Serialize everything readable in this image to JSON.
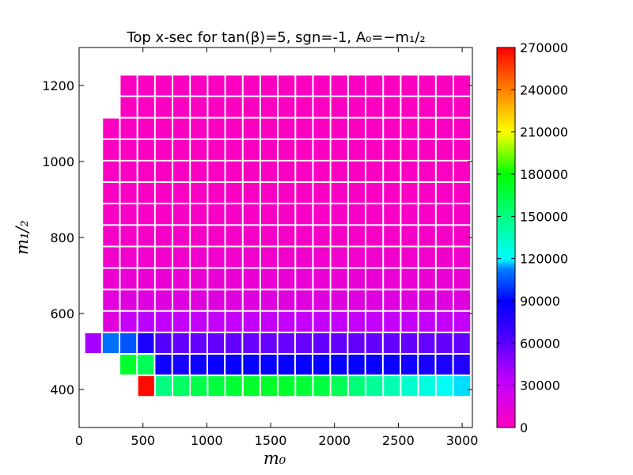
{
  "chart_data": {
    "type": "heatmap",
    "title": "Top x-sec for tan(β)=5, sgn=-1, A₀=−m₁/₂",
    "xlabel": "m₀",
    "ylabel": "m₁/₂",
    "xlim": [
      0,
      3080
    ],
    "ylim": [
      300,
      1300
    ],
    "xticks": [
      0,
      500,
      1000,
      1500,
      2000,
      2500,
      3000
    ],
    "yticks": [
      400,
      600,
      800,
      1000,
      1200
    ],
    "colorbar": {
      "min": 0,
      "max": 270000,
      "ticks": [
        0,
        30000,
        60000,
        90000,
        120000,
        150000,
        180000,
        210000,
        240000,
        270000
      ],
      "colormap": "gist_rainbow_r"
    },
    "cell_size": {
      "dx": 137.5,
      "dy": 56.5
    },
    "rows": [
      {
        "y": 1200,
        "x_start": 387.5,
        "values": [
          1500,
          1500,
          1500,
          1500,
          1500,
          1500,
          1500,
          1500,
          1500,
          1500,
          1500,
          1500,
          1500,
          1500,
          1500,
          1500,
          1500,
          1500,
          1500,
          1500
        ]
      },
      {
        "y": 1143.5,
        "x_start": 387.5,
        "values": [
          1500,
          1500,
          1500,
          1500,
          1500,
          1500,
          1500,
          1500,
          1500,
          1500,
          1500,
          1500,
          1500,
          1500,
          1500,
          1500,
          1500,
          1500,
          1500,
          1500
        ]
      },
      {
        "y": 1087,
        "x_start": 250,
        "values": [
          1500,
          1500,
          1500,
          1500,
          1500,
          1500,
          1500,
          1500,
          1500,
          1500,
          1500,
          1500,
          1500,
          1500,
          1500,
          1500,
          1500,
          1500,
          1500,
          1500,
          1500
        ]
      },
      {
        "y": 1030.5,
        "x_start": 250,
        "values": [
          1500,
          1500,
          1500,
          1500,
          1500,
          1500,
          1500,
          1500,
          1500,
          1500,
          1500,
          1500,
          1500,
          1500,
          1500,
          1500,
          1500,
          1500,
          1500,
          1500,
          1500
        ]
      },
      {
        "y": 974,
        "x_start": 250,
        "values": [
          2000,
          2000,
          2000,
          2000,
          2000,
          2000,
          2000,
          2000,
          2000,
          2000,
          2000,
          2000,
          2000,
          2000,
          2000,
          2000,
          2000,
          2000,
          2000,
          2000,
          2000
        ]
      },
      {
        "y": 917.5,
        "x_start": 250,
        "values": [
          2500,
          2500,
          2500,
          2500,
          2500,
          2500,
          2500,
          2500,
          2500,
          2500,
          2500,
          2500,
          2500,
          2500,
          2500,
          2500,
          2500,
          2500,
          2500,
          2500,
          2500
        ]
      },
      {
        "y": 861,
        "x_start": 250,
        "values": [
          3500,
          3500,
          3500,
          3500,
          3500,
          3500,
          3500,
          3500,
          3500,
          3500,
          3500,
          3500,
          3500,
          3500,
          3500,
          3500,
          3500,
          3500,
          3500,
          3500,
          3500
        ]
      },
      {
        "y": 804.5,
        "x_start": 250,
        "values": [
          5000,
          5000,
          5000,
          5000,
          5000,
          5000,
          5000,
          5000,
          5000,
          5000,
          5000,
          5000,
          5000,
          5000,
          5000,
          5000,
          5000,
          5000,
          5000,
          5000,
          5000
        ]
      },
      {
        "y": 748,
        "x_start": 250,
        "values": [
          7000,
          7500,
          7500,
          7500,
          7500,
          7500,
          7500,
          7500,
          7500,
          7500,
          7500,
          7500,
          7500,
          7500,
          7500,
          7500,
          7500,
          7500,
          7500,
          7500,
          7500
        ]
      },
      {
        "y": 691.5,
        "x_start": 250,
        "values": [
          10000,
          11000,
          11000,
          11000,
          11000,
          11000,
          11000,
          11000,
          11000,
          11000,
          11000,
          11000,
          11000,
          11000,
          11000,
          11000,
          11000,
          11000,
          11000,
          11000,
          11000
        ]
      },
      {
        "y": 635,
        "x_start": 250,
        "values": [
          14000,
          17000,
          17000,
          17000,
          17000,
          17000,
          17000,
          17000,
          17000,
          17000,
          17000,
          17000,
          17000,
          17000,
          17000,
          17000,
          17000,
          17000,
          17000,
          17000,
          17000
        ]
      },
      {
        "y": 578.5,
        "x_start": 250,
        "values": [
          16000,
          30000,
          35000,
          32000,
          31000,
          31000,
          31000,
          31000,
          31000,
          31000,
          31000,
          31000,
          31000,
          31000,
          31000,
          31000,
          31000,
          31000,
          31000,
          31000,
          31000
        ]
      },
      {
        "y": 522,
        "x_start": 110,
        "values": [
          40000,
          110000,
          105000,
          80000,
          62000,
          58000,
          58000,
          58000,
          58000,
          57000,
          57000,
          57000,
          57000,
          58000,
          58000,
          58000,
          58000,
          58000,
          58000,
          58000,
          58000,
          58000
        ]
      },
      {
        "y": 465.5,
        "x_start": 385,
        "values": [
          170000,
          160000,
          85000,
          82000,
          85000,
          87000,
          88000,
          88000,
          88000,
          88000,
          88000,
          88000,
          88000,
          88000,
          87000,
          86000,
          84000,
          82000,
          80000,
          78000
        ]
      },
      {
        "y": 409,
        "x_start": 525,
        "values": [
          268000,
          150000,
          157000,
          163000,
          166000,
          168000,
          170000,
          170000,
          170000,
          168000,
          165000,
          160000,
          152000,
          145000,
          138000,
          132000,
          127000,
          122000,
          118000
        ]
      }
    ]
  }
}
